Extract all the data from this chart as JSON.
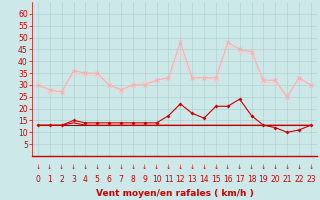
{
  "xlabel": "Vent moyen/en rafales ( km/h )",
  "background_color": "#cce8e8",
  "grid_color": "#aacccc",
  "x": [
    0,
    1,
    2,
    3,
    4,
    5,
    6,
    7,
    8,
    9,
    10,
    11,
    12,
    13,
    14,
    15,
    16,
    17,
    18,
    19,
    20,
    21,
    22,
    23
  ],
  "series1": [
    30,
    28,
    27,
    36,
    35,
    35,
    30,
    28,
    30,
    30,
    32,
    33,
    48,
    33,
    33,
    33,
    48,
    45,
    44,
    32,
    32,
    25,
    33,
    30
  ],
  "series2": [
    30,
    27,
    27,
    35,
    34,
    34,
    30,
    27,
    30,
    31,
    32,
    33,
    44,
    33,
    33,
    32,
    47,
    44,
    43,
    31,
    31,
    25,
    32,
    30
  ],
  "series3": [
    13,
    13,
    13,
    15,
    14,
    14,
    14,
    14,
    14,
    14,
    14,
    17,
    22,
    18,
    16,
    21,
    21,
    24,
    17,
    13,
    12,
    10,
    11,
    13
  ],
  "series4": [
    13,
    13,
    13,
    14,
    13,
    13,
    13,
    13,
    13,
    13,
    13,
    13,
    13,
    13,
    13,
    13,
    13,
    13,
    13,
    13,
    13,
    13,
    13,
    13
  ],
  "series5": [
    13,
    13,
    13,
    13,
    13,
    13,
    13,
    13,
    13,
    13,
    13,
    13,
    13,
    13,
    13,
    13,
    13,
    13,
    13,
    13,
    13,
    13,
    13,
    13
  ],
  "color_series1": "#ffaaaa",
  "color_series2": "#ffcccc",
  "color_series3": "#cc0000",
  "color_series4": "#cc0000",
  "color_series5": "#990000",
  "ylim_min": 0,
  "ylim_max": 65,
  "yticks": [
    5,
    10,
    15,
    20,
    25,
    30,
    35,
    40,
    45,
    50,
    55,
    60
  ],
  "xticks": [
    0,
    1,
    2,
    3,
    4,
    5,
    6,
    7,
    8,
    9,
    10,
    11,
    12,
    13,
    14,
    15,
    16,
    17,
    18,
    19,
    20,
    21,
    22,
    23
  ],
  "red_color": "#cc0000",
  "tick_fontsize": 5.5,
  "xlabel_fontsize": 6.5
}
